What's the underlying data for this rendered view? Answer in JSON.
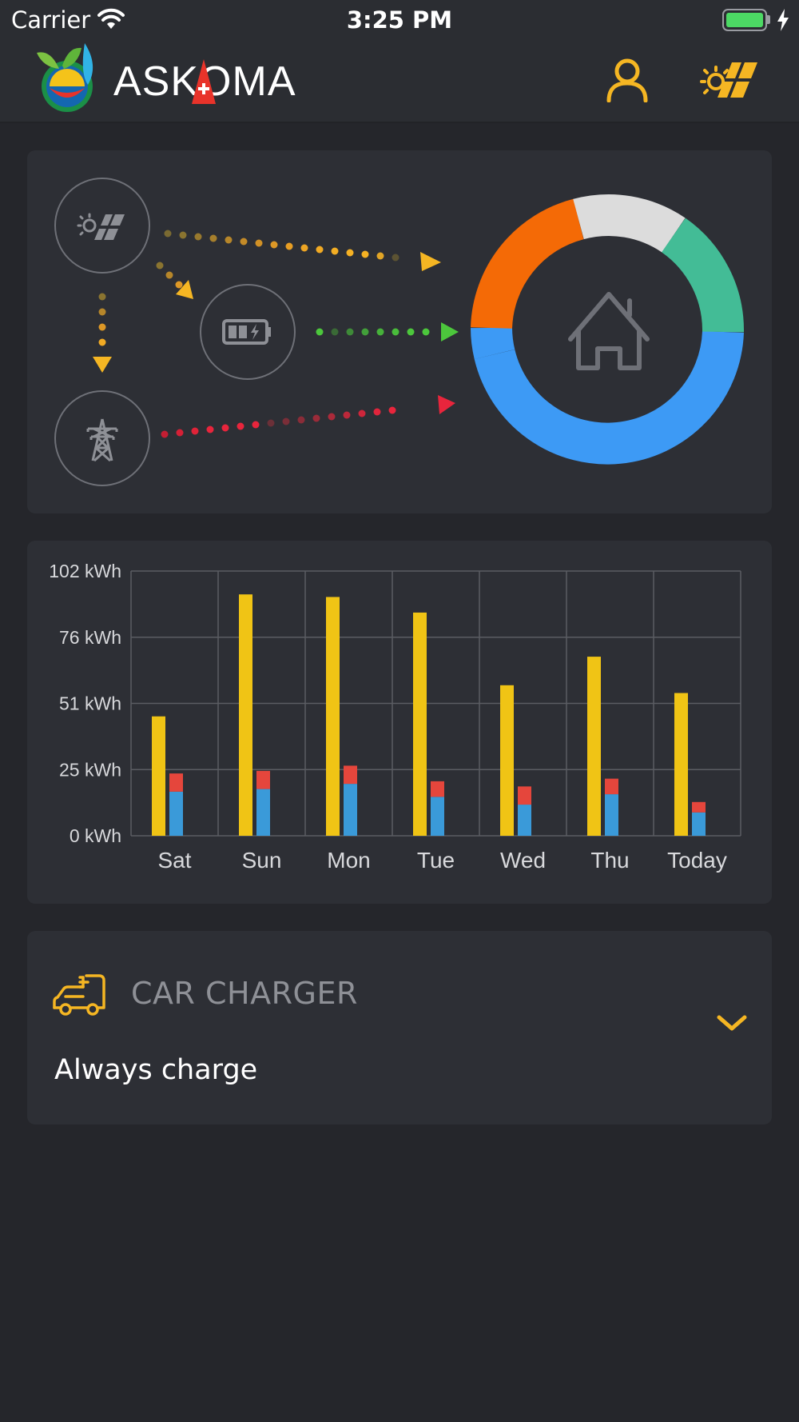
{
  "status_bar": {
    "carrier": "Carrier",
    "time": "3:25 PM",
    "icons": [
      "wifi-icon",
      "battery-icon",
      "charging-bolt-icon"
    ]
  },
  "header": {
    "brand": "ASKOMA",
    "icons": [
      "askoma-logo",
      "user-icon",
      "solar-panel-icon"
    ],
    "accent_color": "#f5b623"
  },
  "energy_flow": {
    "nodes": [
      "solar-panel-icon",
      "battery-icon",
      "power-grid-icon",
      "house-icon"
    ],
    "donut_segments": [
      {
        "color": "#3d9af5",
        "fraction": 0.5
      },
      {
        "color": "#f46a06",
        "fraction": 0.215
      },
      {
        "color": "#dcdcdc",
        "fraction": 0.12
      },
      {
        "color": "#43bc96",
        "fraction": 0.165
      }
    ],
    "arrow_colors": {
      "solar": "#f5b623",
      "battery": "#4cc73c",
      "grid": "#e8253c"
    }
  },
  "chart_data": {
    "type": "bar",
    "categories": [
      "Sat",
      "Sun",
      "Mon",
      "Tue",
      "Wed",
      "Thu",
      "Today"
    ],
    "y_ticks": [
      "0 kWh",
      "25 kWh",
      "51 kWh",
      "76 kWh",
      "102 kWh"
    ],
    "ylim": [
      0,
      102
    ],
    "ylabel": "",
    "xlabel": "",
    "grid": true,
    "series": [
      {
        "color": "#f0c415",
        "values": [
          46,
          93,
          92,
          86,
          58,
          69,
          55
        ],
        "stack": "a"
      },
      {
        "color": "#3a9ad9",
        "values": [
          17,
          18,
          20,
          15,
          12,
          16,
          9
        ],
        "stack": "b"
      },
      {
        "color": "#e5463c",
        "values": [
          7,
          7,
          7,
          6,
          7,
          6,
          4
        ],
        "stack": "b"
      }
    ]
  },
  "car_charger": {
    "title": "CAR CHARGER",
    "mode": "Always charge",
    "icons": [
      "car-charger-icon",
      "chevron-down-icon"
    ]
  }
}
